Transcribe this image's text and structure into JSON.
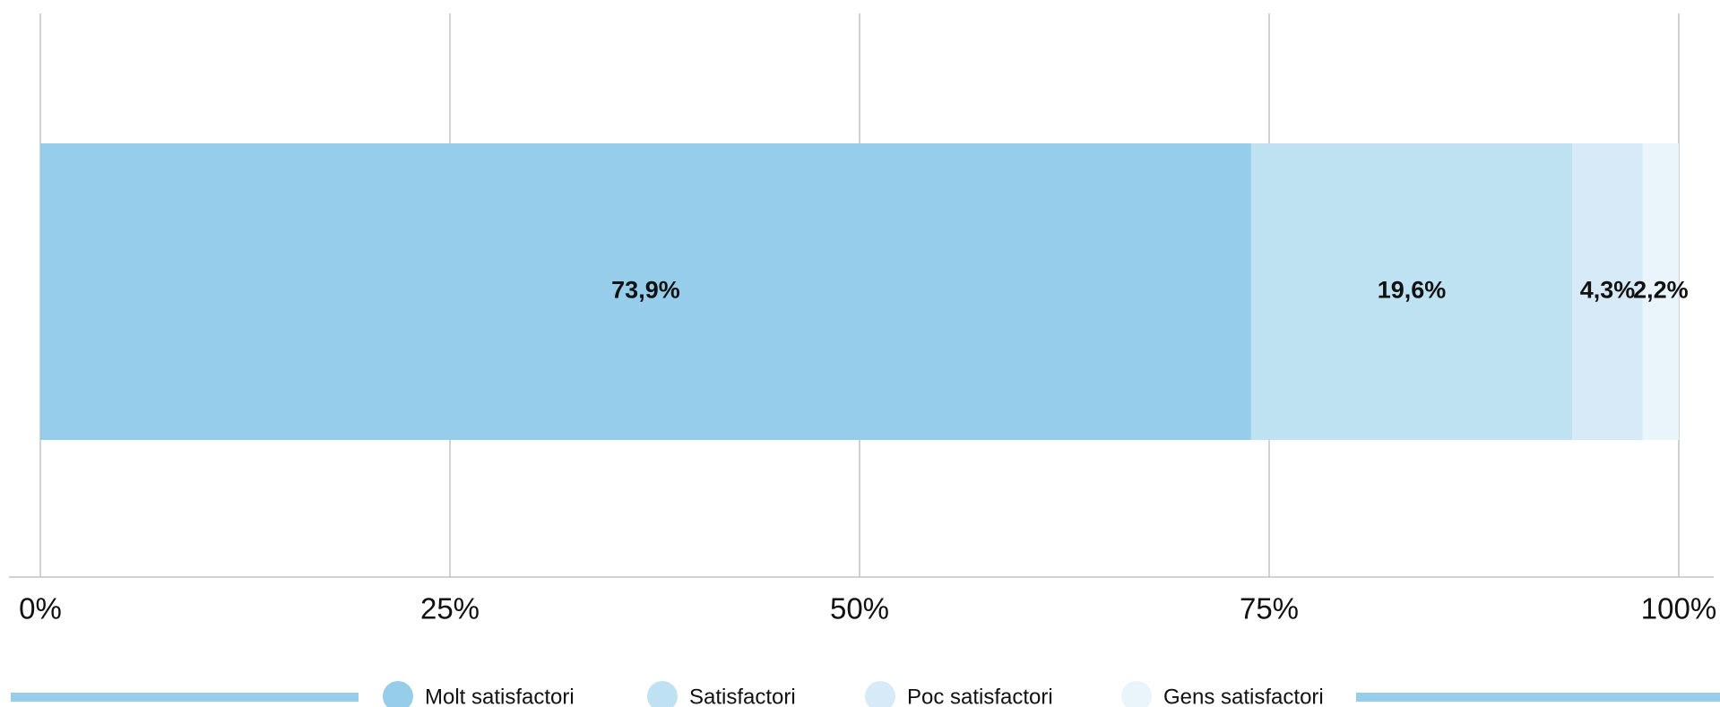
{
  "chart_data": {
    "type": "stacked_bar_horizontal",
    "categories": [
      null
    ],
    "series": [
      {
        "name": "Molt satisfactori",
        "color": "#96cdea",
        "values": [
          73.9
        ],
        "value_labels": [
          "73,9%"
        ]
      },
      {
        "name": "Satisfactori",
        "color": "#bfe2f3",
        "values": [
          19.6
        ],
        "value_labels": [
          "19,6%"
        ]
      },
      {
        "name": "Poc satisfactori",
        "color": "#d6ebf7",
        "values": [
          4.3
        ],
        "value_labels": [
          "4,3%"
        ]
      },
      {
        "name": "Gens satisfactori",
        "color": "#eaf5fb",
        "values": [
          2.2
        ],
        "value_labels": [
          "2,2%"
        ]
      }
    ],
    "xlim": [
      0,
      100
    ],
    "xticks": [
      {
        "value": 0,
        "label": "0%"
      },
      {
        "value": 25,
        "label": "25%"
      },
      {
        "value": 50,
        "label": "50%"
      },
      {
        "value": 75,
        "label": "75%"
      },
      {
        "value": 100,
        "label": "100%"
      }
    ],
    "grid": true,
    "legend": "bottom"
  }
}
